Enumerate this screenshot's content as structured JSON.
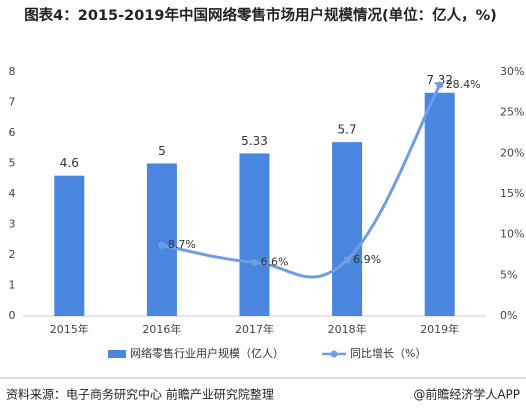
{
  "chart_data": {
    "type": "bar_line",
    "title": "图表4：2015-2019年中国网络零售市场用户规模情况(单位：亿人，%)",
    "categories": [
      "2015年",
      "2016年",
      "2017年",
      "2018年",
      "2019年"
    ],
    "series": [
      {
        "name": "网络零售行业用户规模（亿人）",
        "type": "bar",
        "color": "#4a86e0",
        "values": [
          4.6,
          5,
          5.33,
          5.7,
          7.32
        ]
      },
      {
        "name": "同比增长（%）",
        "type": "line",
        "axis": "y2",
        "color": "#6f9fe2",
        "values": [
          null,
          8.7,
          6.6,
          6.9,
          28.4
        ],
        "value_labels": [
          null,
          "8.7%",
          "6.6%",
          "6.9%",
          "28.4%"
        ]
      }
    ],
    "ylim": [
      0,
      8
    ],
    "yticks": [
      0,
      1,
      2,
      3,
      4,
      5,
      6,
      7,
      8
    ],
    "y2lim": [
      0,
      30
    ],
    "y2ticks": [
      {
        "value": 0,
        "label": "0%"
      },
      {
        "value": 5,
        "label": "5%"
      },
      {
        "value": 10,
        "label": "10%"
      },
      {
        "value": 15,
        "label": "15%"
      },
      {
        "value": 20,
        "label": "20%"
      },
      {
        "value": 25,
        "label": "25%"
      },
      {
        "value": 30,
        "label": "30%"
      }
    ],
    "legend": "bottom",
    "source": "资料来源：电子商务研究中心 前瞻产业研究院整理",
    "credit": "@前瞻经济学人APP"
  }
}
